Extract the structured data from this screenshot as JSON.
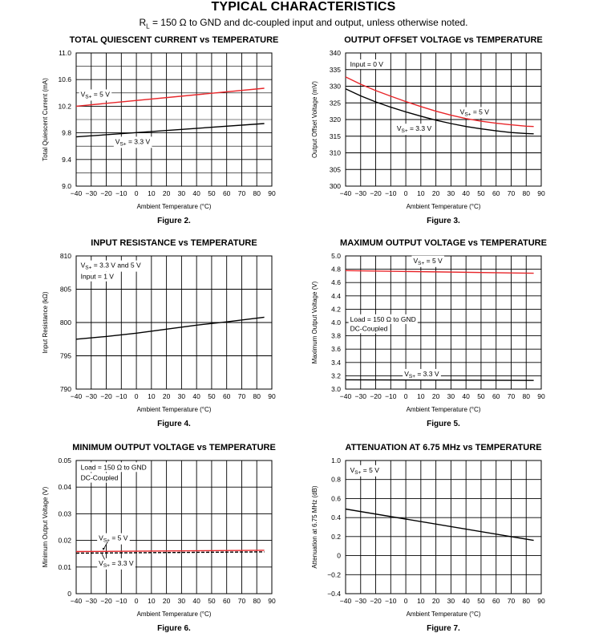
{
  "page": {
    "title": "TYPICAL CHARACTERISTICS",
    "subtitle_parts": {
      "r": "R",
      "r_sub": "L",
      "rest": " = 150 Ω to GND and dc-coupled input and output, unless otherwise noted."
    }
  },
  "colors": {
    "red": "#e8262a",
    "black": "#000000",
    "grid": "#000000"
  },
  "chart_data": [
    {
      "type": "line",
      "title": "TOTAL QUIESCENT CURRENT vs TEMPERATURE",
      "figure": "Figure 2.",
      "xlabel": "Ambient Temperature (°C)",
      "ylabel": "Total Quiescent Current (mA)",
      "xlim": [
        -40,
        90
      ],
      "ylim": [
        9.0,
        11.0
      ],
      "xticks": [
        -40,
        -30,
        -20,
        -10,
        0,
        10,
        20,
        30,
        40,
        50,
        60,
        70,
        80,
        90
      ],
      "xtick_labels": [
        "−40",
        "−30",
        "−20",
        "−10",
        "0",
        "10",
        "20",
        "30",
        "40",
        "50",
        "60",
        "70",
        "80",
        "90"
      ],
      "yticks": [
        9.0,
        9.4,
        9.8,
        10.2,
        10.6,
        11.0
      ],
      "ytick_labels": [
        "9.0",
        "9.4",
        "9.8",
        "10.2",
        "10.6",
        "11.0"
      ],
      "yminor": [
        9.2,
        9.6,
        10.0,
        10.4,
        10.8
      ],
      "series": [
        {
          "name": "VS+ = 5 V",
          "color": "#e8262a",
          "x": [
            -40,
            85
          ],
          "y": [
            10.2,
            10.47
          ]
        },
        {
          "name": "VS+ = 3.3 V",
          "color": "#000000",
          "x": [
            -40,
            85
          ],
          "y": [
            9.74,
            9.94
          ]
        }
      ],
      "annotations": [
        {
          "main": "V",
          "sub": "S+",
          "rest": " = 5 V",
          "x": -37,
          "y": 10.38,
          "box": false
        },
        {
          "main": "V",
          "sub": "S+",
          "rest": " = 3.3 V",
          "x": -14,
          "y": 9.67,
          "box": false
        }
      ]
    },
    {
      "type": "line",
      "title": "OUTPUT OFFSET VOLTAGE vs TEMPERATURE",
      "figure": "Figure 3.",
      "xlabel": "Ambient Temperature (°C)",
      "ylabel": "Output Offset Voltage (mV)",
      "xlim": [
        -40,
        90
      ],
      "ylim": [
        300,
        340
      ],
      "xticks": [
        -40,
        -30,
        -20,
        -10,
        0,
        10,
        20,
        30,
        40,
        50,
        60,
        70,
        80,
        90
      ],
      "xtick_labels": [
        "−40",
        "−30",
        "−20",
        "−10",
        "0",
        "10",
        "20",
        "30",
        "40",
        "50",
        "60",
        "70",
        "80",
        "90"
      ],
      "yticks": [
        300,
        305,
        310,
        315,
        320,
        325,
        330,
        335,
        340
      ],
      "ytick_labels": [
        "300",
        "305",
        "310",
        "315",
        "320",
        "325",
        "330",
        "335",
        "340"
      ],
      "yminor": [],
      "series": [
        {
          "name": "VS+ = 5 V",
          "color": "#e8262a",
          "x": [
            -40,
            -30,
            -20,
            -10,
            0,
            10,
            20,
            30,
            40,
            50,
            60,
            70,
            80,
            85
          ],
          "y": [
            332.8,
            330.6,
            328.7,
            327.0,
            325.4,
            323.9,
            322.5,
            321.3,
            320.3,
            319.5,
            318.9,
            318.4,
            318.0,
            317.9
          ]
        },
        {
          "name": "VS+ = 3.3 V",
          "color": "#000000",
          "x": [
            -40,
            -30,
            -20,
            -10,
            0,
            10,
            20,
            30,
            40,
            50,
            60,
            70,
            80,
            85
          ],
          "y": [
            329.2,
            327.1,
            325.3,
            323.7,
            322.3,
            321.0,
            319.8,
            318.8,
            317.9,
            317.2,
            316.6,
            316.1,
            315.8,
            315.7
          ]
        }
      ],
      "annotations": [
        {
          "main": "Input = 0 V",
          "sub": "",
          "rest": "",
          "x": -37,
          "y": 336.6,
          "box": true
        },
        {
          "main": "V",
          "sub": "S+",
          "rest": " = 5 V",
          "x": 36,
          "y": 322.3,
          "box": true
        },
        {
          "main": "V",
          "sub": "S+",
          "rest": " = 3.3 V",
          "x": -6,
          "y": 317.3,
          "box": true
        }
      ]
    },
    {
      "type": "line",
      "title": "INPUT RESISTANCE vs TEMPERATURE",
      "figure": "Figure 4.",
      "xlabel": "Ambient Temperature (°C)",
      "ylabel": "Input Resistance (kΩ)",
      "xlim": [
        -40,
        90
      ],
      "ylim": [
        790,
        810
      ],
      "xticks": [
        -40,
        -30,
        -20,
        -10,
        0,
        10,
        20,
        30,
        40,
        50,
        60,
        70,
        80,
        90
      ],
      "xtick_labels": [
        "−40",
        "−30",
        "−20",
        "−10",
        "0",
        "10",
        "20",
        "30",
        "40",
        "50",
        "60",
        "70",
        "80",
        "90"
      ],
      "yticks": [
        790,
        795,
        800,
        805,
        810
      ],
      "ytick_labels": [
        "790",
        "795",
        "800",
        "805",
        "810"
      ],
      "yminor": [],
      "series": [
        {
          "name": "VS+ = 3.3 V and 5 V",
          "color": "#000000",
          "x": [
            -40,
            -20,
            0,
            20,
            40,
            60,
            85
          ],
          "y": [
            797.5,
            797.9,
            798.4,
            799.0,
            799.6,
            800.1,
            800.8
          ]
        }
      ],
      "annotations": [
        {
          "main": "V",
          "sub": "S+",
          "rest": " = 3.3 V and 5 V",
          "x": -37,
          "y": 808.6,
          "box": true
        },
        {
          "main": "Input = 1 V",
          "sub": "",
          "rest": "",
          "x": -37,
          "y": 806.9,
          "box": true
        }
      ]
    },
    {
      "type": "line",
      "title": "MAXIMUM OUTPUT VOLTAGE vs TEMPERATURE",
      "figure": "Figure 5.",
      "xlabel": "Ambient Temperature (°C)",
      "ylabel": "Maximum Output Voltage (V)",
      "xlim": [
        -40,
        90
      ],
      "ylim": [
        3.0,
        5.0
      ],
      "xticks": [
        -40,
        -30,
        -20,
        -10,
        0,
        10,
        20,
        30,
        40,
        50,
        60,
        70,
        80,
        90
      ],
      "xtick_labels": [
        "−40",
        "−30",
        "−20",
        "−10",
        "0",
        "10",
        "20",
        "30",
        "40",
        "50",
        "60",
        "70",
        "80",
        "90"
      ],
      "yticks": [
        3.0,
        3.2,
        3.4,
        3.6,
        3.8,
        4.0,
        4.2,
        4.4,
        4.6,
        4.8,
        5.0
      ],
      "ytick_labels": [
        "3.0",
        "3.2",
        "3.4",
        "3.6",
        "3.8",
        "4.0",
        "4.2",
        "4.4",
        "4.6",
        "4.8",
        "5.0"
      ],
      "yminor": [],
      "series": [
        {
          "name": "VS+ = 5 V",
          "color": "#e8262a",
          "x": [
            -40,
            85
          ],
          "y": [
            4.78,
            4.74
          ]
        },
        {
          "name": "VS+ = 3.3 V",
          "color": "#000000",
          "x": [
            -40,
            85
          ],
          "y": [
            3.14,
            3.13
          ]
        }
      ],
      "annotations": [
        {
          "main": "V",
          "sub": "S+",
          "rest": " = 5 V",
          "x": 5,
          "y": 4.93,
          "box": true
        },
        {
          "main": "Load = 150 Ω to GND",
          "sub": "",
          "rest": "",
          "x": -37,
          "y": 4.05,
          "box": true
        },
        {
          "main": "DC-Coupled",
          "sub": "",
          "rest": "",
          "x": -37,
          "y": 3.91,
          "box": true
        },
        {
          "main": "V",
          "sub": "S+",
          "rest": " = 3.3 V",
          "x": -1,
          "y": 3.23,
          "box": true
        }
      ]
    },
    {
      "type": "line",
      "title": "MINIMUM OUTPUT VOLTAGE vs TEMPERATURE",
      "figure": "Figure 6.",
      "xlabel": "Ambient Temperature (°C)",
      "ylabel": "Minimum Output Voltage (V)",
      "xlim": [
        -40,
        90
      ],
      "ylim": [
        0,
        0.05
      ],
      "xticks": [
        -40,
        -30,
        -20,
        -10,
        0,
        10,
        20,
        30,
        40,
        50,
        60,
        70,
        80,
        90
      ],
      "xtick_labels": [
        "−40",
        "−30",
        "−20",
        "−10",
        "0",
        "10",
        "20",
        "30",
        "40",
        "50",
        "60",
        "70",
        "80",
        "90"
      ],
      "yticks": [
        0,
        0.01,
        0.02,
        0.03,
        0.04,
        0.05
      ],
      "ytick_labels": [
        "0",
        "0.01",
        "0.02",
        "0.03",
        "0.04",
        "0.05"
      ],
      "yminor": [],
      "series": [
        {
          "name": "VS+ = 5 V",
          "color": "#e8262a",
          "x": [
            -40,
            85
          ],
          "y": [
            0.0158,
            0.0163
          ]
        },
        {
          "name": "VS+ = 3.3 V",
          "color": "#000000",
          "dashed": true,
          "x": [
            -40,
            85
          ],
          "y": [
            0.0152,
            0.0157
          ]
        }
      ],
      "annotations": [
        {
          "main": "Load = 150 Ω to GND",
          "sub": "",
          "rest": "",
          "x": -37,
          "y": 0.0475,
          "box": true
        },
        {
          "main": "DC-Coupled",
          "sub": "",
          "rest": "",
          "x": -37,
          "y": 0.0435,
          "box": true
        },
        {
          "main": "V",
          "sub": "S+",
          "rest": " = 5 V",
          "x": -25,
          "y": 0.0209,
          "box": true
        },
        {
          "main": "V",
          "sub": "S+",
          "rest": " = 3.3 V",
          "x": -25,
          "y": 0.0115,
          "box": true
        }
      ]
    },
    {
      "type": "line",
      "title": "ATTENUATION AT 6.75 MHz vs TEMPERATURE",
      "figure": "Figure 7.",
      "xlabel": "Ambient Temperature (°C)",
      "ylabel": "Attenuation at 6.75 MHz (dB)",
      "xlim": [
        -40,
        90
      ],
      "ylim": [
        -0.4,
        1.0
      ],
      "xticks": [
        -40,
        -30,
        -20,
        -10,
        0,
        10,
        20,
        30,
        40,
        50,
        60,
        70,
        80,
        90
      ],
      "xtick_labels": [
        "−40",
        "−30",
        "−20",
        "−10",
        "0",
        "10",
        "20",
        "30",
        "40",
        "50",
        "60",
        "70",
        "80",
        "90"
      ],
      "yticks": [
        -0.4,
        -0.2,
        0,
        0.2,
        0.4,
        0.6,
        0.8,
        1.0
      ],
      "ytick_labels": [
        "−0.4",
        "−0.2",
        "0",
        "0.2",
        "0.4",
        "0.6",
        "0.8",
        "1.0"
      ],
      "yminor": [],
      "series": [
        {
          "name": "VS+ = 5 V",
          "color": "#000000",
          "x": [
            -40,
            85
          ],
          "y": [
            0.49,
            0.16
          ]
        }
      ],
      "annotations": [
        {
          "main": "V",
          "sub": "S+",
          "rest": " = 5 V",
          "x": -37,
          "y": 0.9,
          "box": true
        }
      ]
    }
  ]
}
